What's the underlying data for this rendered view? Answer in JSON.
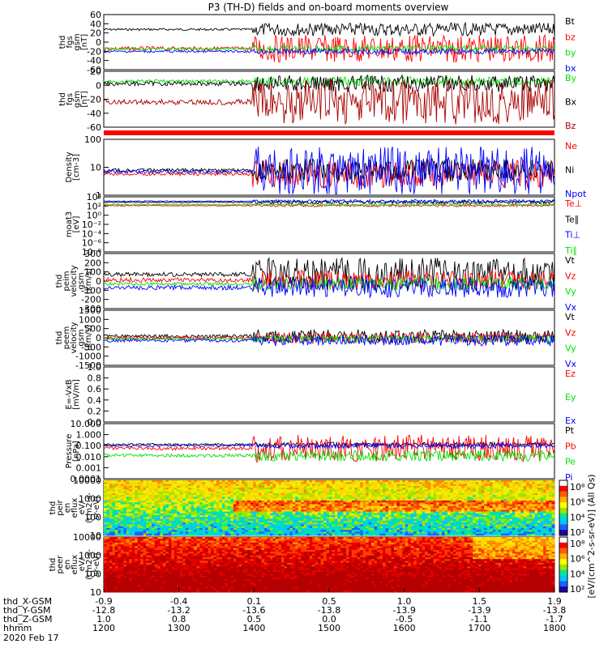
{
  "chart_data": {
    "type": "line",
    "title": "P3 (TH-D) fields and on-board moments overview",
    "panels": [
      {
        "ylabel": [
          "thd",
          "fgs",
          "gsm",
          "[nT]"
        ],
        "ylim": [
          -60,
          60
        ],
        "yticks": [
          "60",
          "40",
          "20",
          "0",
          "-20",
          "-40",
          "-60"
        ],
        "series": [
          {
            "name": "Bt",
            "color": "#000000"
          },
          {
            "name": "bz",
            "color": "#ff0000"
          },
          {
            "name": "by",
            "color": "#00e000"
          },
          {
            "name": "bx",
            "color": "#0000ff"
          }
        ]
      },
      {
        "ylabel": [
          "thd",
          "fgs",
          "gsm",
          "[nT]"
        ],
        "ylim": [
          -70,
          20
        ],
        "yticks": [
          "20",
          "0",
          "-20",
          "-40",
          "-60"
        ],
        "series": [
          {
            "name": "By",
            "color": "#00e000"
          },
          {
            "name": "Bx",
            "color": "#000000"
          },
          {
            "name": "Bz",
            "color": "#aa0000"
          }
        ]
      },
      {
        "ylabel": [
          "Density",
          "[cm-3]"
        ],
        "ylim": [
          0.5,
          200
        ],
        "log": true,
        "yticks": [
          "100",
          "10",
          "1"
        ],
        "series": [
          {
            "name": "Ne",
            "color": "#ff0000"
          },
          {
            "name": "Ni",
            "color": "#000000"
          },
          {
            "name": "Npot",
            "color": "#0000ff"
          }
        ]
      },
      {
        "ylabel": [
          "moat3",
          "[eV]"
        ],
        "ylim": [
          1e-09,
          100000.0
        ],
        "log": true,
        "yticks": [
          "10⁴",
          "10²",
          "10⁰",
          "10⁻²",
          "10⁻⁴",
          "10⁻⁶",
          "10⁻⁸"
        ],
        "series": [
          {
            "name": "Te⊥",
            "color": "#ff0000"
          },
          {
            "name": "Te∥",
            "color": "#000000"
          },
          {
            "name": "Ti⊥",
            "color": "#0000ff"
          },
          {
            "name": "Ti∥",
            "color": "#00e000"
          }
        ]
      },
      {
        "ylabel": [
          "thd",
          "peim",
          "velocity",
          "gsm",
          "[km/s]"
        ],
        "ylim": [
          -300,
          300
        ],
        "yticks": [
          "300",
          "200",
          "100",
          "0",
          "-100",
          "-200",
          "-300"
        ],
        "series": [
          {
            "name": "Vt",
            "color": "#000000"
          },
          {
            "name": "Vz",
            "color": "#ff0000"
          },
          {
            "name": "Vy",
            "color": "#00e000"
          },
          {
            "name": "Vx",
            "color": "#0000ff"
          }
        ]
      },
      {
        "ylabel": [
          "thd",
          "peem",
          "velocity",
          "gsm",
          "[km/s]"
        ],
        "ylim": [
          -1500,
          1500
        ],
        "yticks": [
          "1500",
          "1000",
          "500",
          "0",
          "-500",
          "-1000",
          "-1500"
        ],
        "series": [
          {
            "name": "Vt",
            "color": "#000000"
          },
          {
            "name": "Vz",
            "color": "#ff0000"
          },
          {
            "name": "Vy",
            "color": "#00e000"
          },
          {
            "name": "Vx",
            "color": "#0000ff"
          }
        ]
      },
      {
        "ylabel": [
          "E=-VxB",
          "[mV/m]"
        ],
        "ylim": [
          0,
          1
        ],
        "yticks": [
          "1.0",
          "0.8",
          "0.6",
          "0.4",
          "0.2",
          "0.0"
        ],
        "series": [
          {
            "name": "Ez",
            "color": "#ff0000"
          },
          {
            "name": "Ey",
            "color": "#00e000"
          },
          {
            "name": "Ex",
            "color": "#0000ff"
          }
        ]
      },
      {
        "ylabel": [
          "Pressure",
          "[nPa]"
        ],
        "ylim": [
          0.0001,
          10
        ],
        "log": true,
        "yticks": [
          "10.000",
          "1.000",
          "0.100",
          "0.010",
          "0.001",
          "0.0001"
        ],
        "series": [
          {
            "name": "Pt",
            "color": "#000000"
          },
          {
            "name": "Pb",
            "color": "#ff0000"
          },
          {
            "name": "Pe",
            "color": "#00e000"
          },
          {
            "name": "Pi",
            "color": "#0000ff"
          }
        ]
      },
      {
        "ylabel": [
          "thd",
          "peir",
          "en",
          "eflux",
          "eV/",
          "(cm2-s-",
          "sr-eV)"
        ],
        "type": "spectrogram",
        "yticks": [
          "10000",
          "1000",
          "100",
          "10"
        ],
        "colorbar": [
          "10⁸",
          "10⁶",
          "10⁴",
          "10²"
        ],
        "colorbar_label": "[eV/(cm^2-s-sr-eV)] (All Qs)"
      },
      {
        "ylabel": [
          "thd",
          "peer",
          "en",
          "eflux",
          "eV/",
          "(cm2-s-",
          "sr-eV)"
        ],
        "type": "spectrogram",
        "yticks": [
          "10000",
          "1000",
          "100",
          "10"
        ],
        "colorbar": [
          "10⁸",
          "10⁶",
          "10⁴",
          "10²"
        ]
      }
    ],
    "x_axis": {
      "hhmm": [
        "1200",
        "1300",
        "1400",
        "1500",
        "1600",
        "1700",
        "1800"
      ],
      "rows": [
        {
          "label": "thd_X-GSM",
          "values": [
            "-0.9",
            "-0.4",
            "0.1",
            "0.5",
            "1.0",
            "1.5",
            "1.9"
          ]
        },
        {
          "label": "thd_Y-GSM",
          "values": [
            "-12.8",
            "-13.2",
            "-13.6",
            "-13.8",
            "-13.9",
            "-13.9",
            "-13.8"
          ]
        },
        {
          "label": "thd_Z-GSM",
          "values": [
            "1.0",
            "0.8",
            "0.5",
            "0.0",
            "-0.5",
            "-1.1",
            "-1.7"
          ]
        },
        {
          "label": "hhmm",
          "values": [
            "1200",
            "1300",
            "1400",
            "1500",
            "1600",
            "1700",
            "1800"
          ]
        }
      ],
      "date": "2020 Feb 17"
    }
  }
}
